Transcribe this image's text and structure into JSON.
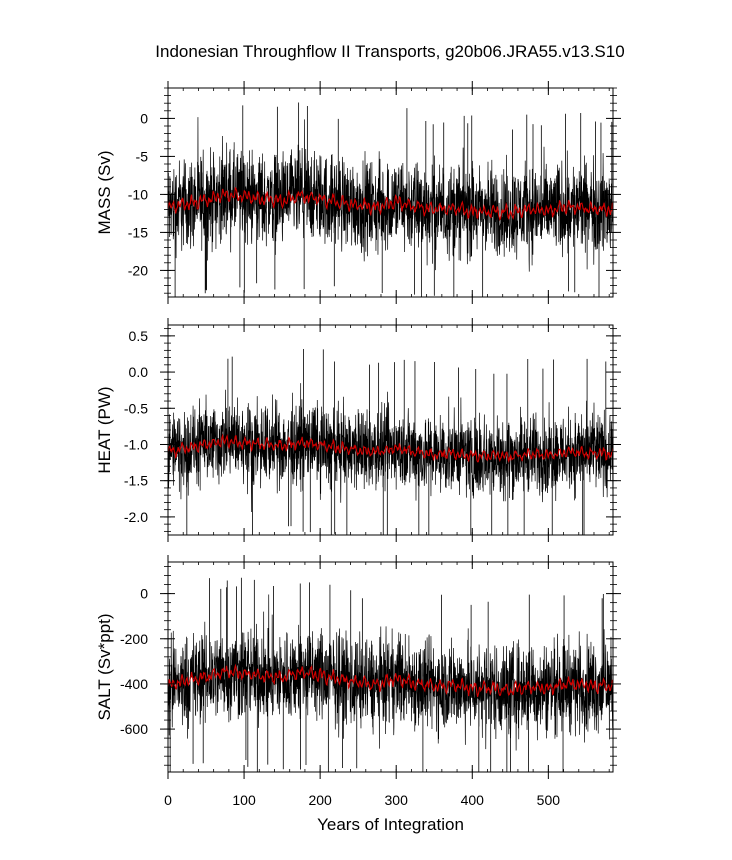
{
  "chart_data": {
    "type": "line",
    "title": "Indonesian Throughflow II Transports, g20b06.JRA55.v13.S10",
    "xlabel": "Years of Integration",
    "x_range": [
      0,
      585
    ],
    "x_ticks": [
      "0",
      "100",
      "200",
      "300",
      "400",
      "500"
    ],
    "x_tick_values": [
      0,
      100,
      200,
      300,
      400,
      500
    ],
    "raw_color": "#000000",
    "smooth_color": "#d40000",
    "panels": [
      {
        "ylabel": "MASS (Sv)",
        "ylim": [
          -23.5,
          4
        ],
        "y_ticks": [
          "0",
          "-5",
          "-10",
          "-15",
          "-20"
        ],
        "y_tick_values": [
          0,
          -5,
          -10,
          -15,
          -20
        ],
        "raw_band": [
          -20,
          -3
        ],
        "raw_extremes": [
          -22.5,
          3
        ],
        "smoothed_mean": [
          {
            "x": 0,
            "y": -11.8
          },
          {
            "x": 25,
            "y": -11.2
          },
          {
            "x": 50,
            "y": -10.8
          },
          {
            "x": 75,
            "y": -10.0
          },
          {
            "x": 100,
            "y": -10.3
          },
          {
            "x": 125,
            "y": -10.6
          },
          {
            "x": 150,
            "y": -10.8
          },
          {
            "x": 175,
            "y": -10.2
          },
          {
            "x": 200,
            "y": -10.6
          },
          {
            "x": 225,
            "y": -11.0
          },
          {
            "x": 250,
            "y": -11.4
          },
          {
            "x": 275,
            "y": -11.8
          },
          {
            "x": 300,
            "y": -11.0
          },
          {
            "x": 325,
            "y": -11.6
          },
          {
            "x": 350,
            "y": -12.0
          },
          {
            "x": 375,
            "y": -11.8
          },
          {
            "x": 400,
            "y": -12.3
          },
          {
            "x": 425,
            "y": -12.2
          },
          {
            "x": 450,
            "y": -12.4
          },
          {
            "x": 475,
            "y": -12.0
          },
          {
            "x": 500,
            "y": -12.2
          },
          {
            "x": 525,
            "y": -11.6
          },
          {
            "x": 550,
            "y": -11.8
          },
          {
            "x": 585,
            "y": -12.0
          }
        ]
      },
      {
        "ylabel": "HEAT (PW)",
        "ylim": [
          -2.25,
          0.65
        ],
        "y_ticks": [
          "0.5",
          "0.0",
          "-0.5",
          "-1.0",
          "-1.5",
          "-2.0"
        ],
        "y_tick_values": [
          0.5,
          0.0,
          -0.5,
          -1.0,
          -1.5,
          -2.0
        ],
        "raw_band": [
          -1.85,
          -0.3
        ],
        "raw_extremes": [
          -2.15,
          0.5
        ],
        "smoothed_mean": [
          {
            "x": 0,
            "y": -1.1
          },
          {
            "x": 25,
            "y": -1.05
          },
          {
            "x": 50,
            "y": -1.0
          },
          {
            "x": 75,
            "y": -0.95
          },
          {
            "x": 100,
            "y": -0.98
          },
          {
            "x": 125,
            "y": -1.0
          },
          {
            "x": 150,
            "y": -1.02
          },
          {
            "x": 175,
            "y": -0.97
          },
          {
            "x": 200,
            "y": -1.0
          },
          {
            "x": 225,
            "y": -1.05
          },
          {
            "x": 250,
            "y": -1.08
          },
          {
            "x": 275,
            "y": -1.1
          },
          {
            "x": 300,
            "y": -1.05
          },
          {
            "x": 325,
            "y": -1.1
          },
          {
            "x": 350,
            "y": -1.14
          },
          {
            "x": 375,
            "y": -1.12
          },
          {
            "x": 400,
            "y": -1.16
          },
          {
            "x": 425,
            "y": -1.15
          },
          {
            "x": 450,
            "y": -1.17
          },
          {
            "x": 475,
            "y": -1.13
          },
          {
            "x": 500,
            "y": -1.15
          },
          {
            "x": 525,
            "y": -1.1
          },
          {
            "x": 550,
            "y": -1.12
          },
          {
            "x": 585,
            "y": -1.13
          }
        ]
      },
      {
        "ylabel": "SALT (Sv*ppt)",
        "ylim": [
          -790,
          140
        ],
        "y_ticks": [
          "0",
          "-200",
          "-400",
          "-600"
        ],
        "y_tick_values": [
          0,
          -200,
          -400,
          -600
        ],
        "raw_band": [
          -680,
          -110
        ],
        "raw_extremes": [
          -770,
          100
        ],
        "smoothed_mean": [
          {
            "x": 0,
            "y": -410
          },
          {
            "x": 25,
            "y": -385
          },
          {
            "x": 50,
            "y": -370
          },
          {
            "x": 75,
            "y": -345
          },
          {
            "x": 100,
            "y": -355
          },
          {
            "x": 125,
            "y": -365
          },
          {
            "x": 150,
            "y": -372
          },
          {
            "x": 175,
            "y": -350
          },
          {
            "x": 200,
            "y": -362
          },
          {
            "x": 225,
            "y": -378
          },
          {
            "x": 250,
            "y": -392
          },
          {
            "x": 275,
            "y": -405
          },
          {
            "x": 300,
            "y": -378
          },
          {
            "x": 325,
            "y": -398
          },
          {
            "x": 350,
            "y": -412
          },
          {
            "x": 375,
            "y": -405
          },
          {
            "x": 400,
            "y": -422
          },
          {
            "x": 425,
            "y": -418
          },
          {
            "x": 450,
            "y": -428
          },
          {
            "x": 475,
            "y": -412
          },
          {
            "x": 500,
            "y": -418
          },
          {
            "x": 525,
            "y": -398
          },
          {
            "x": 550,
            "y": -405
          },
          {
            "x": 585,
            "y": -412
          }
        ]
      }
    ]
  }
}
